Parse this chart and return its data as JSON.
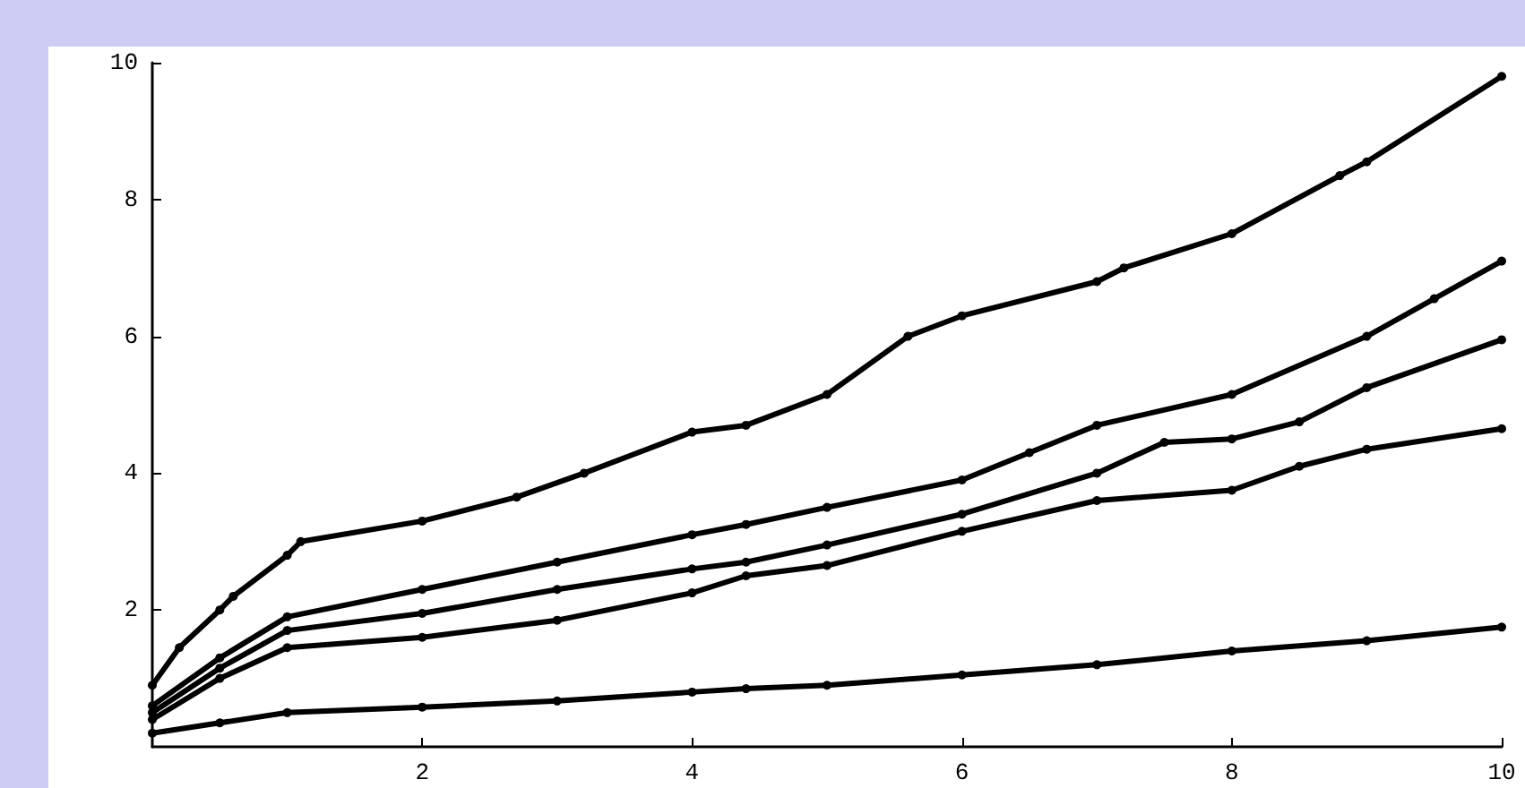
{
  "chart_data": {
    "type": "line",
    "marker": "circle",
    "line_style": "solid",
    "xlim": [
      0,
      10
    ],
    "ylim": [
      0,
      10
    ],
    "xticks": [
      2,
      4,
      6,
      8,
      10
    ],
    "yticks": [
      2,
      4,
      6,
      8,
      10
    ],
    "x": [
      0,
      0.2,
      0.5,
      0.6,
      1,
      1.1,
      2,
      2.7,
      3.2,
      4,
      4.4,
      5,
      5.6,
      6,
      7,
      7.2,
      8,
      8.8,
      9,
      10
    ],
    "series": [
      {
        "color": "#000000",
        "values": [
          0.9,
          1.45,
          2.0,
          2.2,
          2.8,
          3.0,
          3.3,
          3.65,
          4.0,
          4.6,
          4.7,
          5.15,
          6.0,
          6.3,
          6.8,
          7.0,
          7.5,
          8.35,
          8.55,
          9.8
        ]
      },
      {
        "color": "#000000",
        "x": [
          0,
          0.5,
          1,
          2,
          3,
          4,
          4.4,
          5,
          6,
          6.5,
          7,
          8,
          9,
          9.5,
          10
        ],
        "values": [
          0.6,
          1.3,
          1.9,
          2.3,
          2.7,
          3.1,
          3.25,
          3.5,
          3.9,
          4.3,
          4.7,
          5.15,
          6.0,
          6.55,
          7.1
        ]
      },
      {
        "color": "#000000",
        "x": [
          0,
          0.5,
          1,
          2,
          3,
          4,
          4.4,
          5,
          6,
          7,
          7.5,
          8,
          8.5,
          9,
          10
        ],
        "values": [
          0.5,
          1.15,
          1.7,
          1.95,
          2.3,
          2.6,
          2.7,
          2.95,
          3.4,
          4.0,
          4.45,
          4.5,
          4.75,
          5.25,
          5.95
        ]
      },
      {
        "color": "#000000",
        "x": [
          0,
          0.5,
          1,
          2,
          3,
          4,
          4.4,
          5,
          6,
          7,
          8,
          8.5,
          9,
          10
        ],
        "values": [
          0.4,
          1.0,
          1.45,
          1.6,
          1.85,
          2.25,
          2.5,
          2.65,
          3.15,
          3.6,
          3.75,
          4.1,
          4.35,
          4.65
        ]
      },
      {
        "color": "#000000",
        "x": [
          0,
          0.5,
          1,
          2,
          3,
          4,
          4.4,
          5,
          6,
          7,
          8,
          9,
          10
        ],
        "values": [
          0.2,
          0.35,
          0.5,
          0.58,
          0.67,
          0.8,
          0.85,
          0.9,
          1.05,
          1.2,
          1.4,
          1.55,
          1.75
        ]
      }
    ]
  }
}
